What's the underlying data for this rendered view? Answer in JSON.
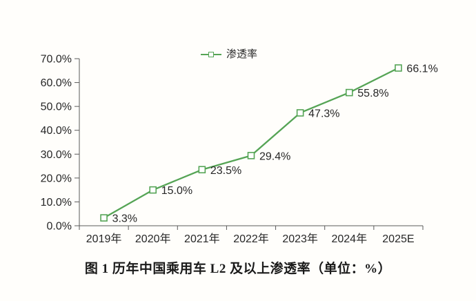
{
  "legend": {
    "label": "渗透率"
  },
  "caption": "图 1  历年中国乘用车 L2 及以上渗透率（单位：%）",
  "colors": {
    "line": "#55a455",
    "marker_fill": "#ffffff",
    "axis": "#595959",
    "text": "#262626",
    "background": "#fffefb"
  },
  "chart_data": {
    "type": "line",
    "title": "图 1  历年中国乘用车 L2 及以上渗透率（单位：%）",
    "categories": [
      "2019年",
      "2020年",
      "2021年",
      "2022年",
      "2023年",
      "2024年",
      "2025E"
    ],
    "series": [
      {
        "name": "渗透率",
        "values": [
          3.3,
          15.0,
          23.5,
          29.4,
          47.3,
          55.8,
          66.1
        ]
      }
    ],
    "data_labels": [
      "3.3%",
      "15.0%",
      "23.5%",
      "29.4%",
      "47.3%",
      "55.8%",
      "66.1%"
    ],
    "xlabel": "",
    "ylabel": "",
    "ylim": [
      0,
      70
    ],
    "ytick_step": 10,
    "ytick_labels": [
      "0.0%",
      "10.0%",
      "20.0%",
      "30.0%",
      "40.0%",
      "50.0%",
      "60.0%",
      "70.0%"
    ],
    "grid": false,
    "legend_position": "top-center",
    "marker": "hollow-square"
  }
}
